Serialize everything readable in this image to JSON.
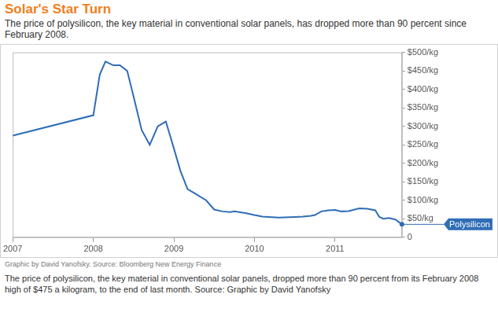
{
  "chart_data": {
    "type": "line",
    "title": "Solar's Star Turn",
    "subtitle": "The price of polysilicon, the key material in conventional solar panels, has dropped more than 90 percent since February 2008.",
    "source": "Graphic by David Yanofsky. Source: Bloomberg New Energy Finance",
    "caption": "The price of polysilicon, the key material in conventional solar panels, dropped more than 90 percent from its February 2008 high of $475 a kilogram, to the end of last month. Source: Graphic by David Yanofsky",
    "x": [
      2007.0,
      2008.0,
      2008.08,
      2008.15,
      2008.25,
      2008.33,
      2008.42,
      2008.5,
      2008.6,
      2008.7,
      2008.8,
      2008.9,
      2009.0,
      2009.08,
      2009.17,
      2009.25,
      2009.4,
      2009.5,
      2009.6,
      2009.7,
      2009.75,
      2009.9,
      2010.0,
      2010.1,
      2010.3,
      2010.5,
      2010.6,
      2010.7,
      2010.75,
      2010.83,
      2010.92,
      2011.0,
      2011.08,
      2011.17,
      2011.3,
      2011.4,
      2011.5,
      2011.55,
      2011.6,
      2011.67,
      2011.75,
      2011.83
    ],
    "series": [
      {
        "name": "Polysilicon",
        "color": "#2f6db5",
        "values": [
          275,
          330,
          440,
          475,
          465,
          465,
          450,
          380,
          290,
          250,
          300,
          313,
          240,
          180,
          130,
          120,
          100,
          75,
          70,
          68,
          70,
          65,
          60,
          56,
          53,
          55,
          56,
          58,
          60,
          70,
          73,
          74,
          70,
          71,
          78,
          77,
          73,
          55,
          50,
          52,
          48,
          35
        ]
      }
    ],
    "xlim": [
      2007,
      2011.83
    ],
    "xticks": [
      2007,
      2008,
      2009,
      2010,
      2011
    ],
    "ylim": [
      0,
      500
    ],
    "yticks": [
      0,
      {
        "value": 50,
        "label": "$50/kg"
      },
      {
        "value": 100,
        "label": "$100/kg"
      },
      {
        "value": 150,
        "label": "$150/kg"
      },
      {
        "value": 200,
        "label": "$200/kg"
      },
      {
        "value": 250,
        "label": "$250/kg"
      },
      {
        "value": 300,
        "label": "$300/kg"
      },
      {
        "value": 350,
        "label": "$350/kg"
      },
      {
        "value": 400,
        "label": "$400/kg"
      },
      {
        "value": 450,
        "label": "$450/kg"
      },
      {
        "value": 500,
        "label": "$500/kg"
      }
    ],
    "grid": false
  }
}
